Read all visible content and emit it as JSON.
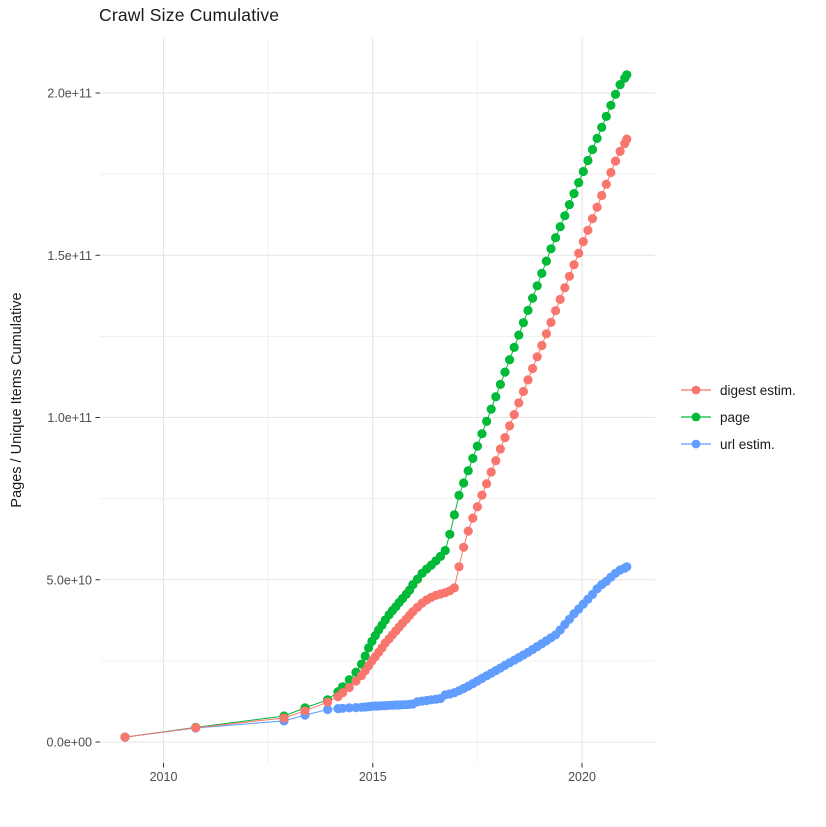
{
  "title": "Crawl Size Cumulative",
  "axes": {
    "y_label": "Pages / Unique Items Cumulative",
    "x_tick_labels": [
      "2010",
      "2015",
      "2020"
    ],
    "y_tick_labels": [
      "0.0e+00",
      "5.0e+10",
      "1.0e+11",
      "1.5e+11",
      "2.0e+11"
    ]
  },
  "legend": {
    "position": "right",
    "items": [
      {
        "label": "digest estim.",
        "color": "#F8766D"
      },
      {
        "label": "page",
        "color": "#00BA38"
      },
      {
        "label": "url estim.",
        "color": "#619CFF"
      }
    ]
  },
  "chart_data": {
    "type": "line",
    "title": "Crawl Size Cumulative",
    "xlabel": "",
    "ylabel": "Pages / Unique Items Cumulative",
    "xlim": [
      2008.5,
      2021.8
    ],
    "ylim": [
      0,
      210000000000.0
    ],
    "grid": true,
    "legend_position": "right",
    "point_shape": "circle",
    "x_major": [
      2010,
      2015,
      2020
    ],
    "x_minor": [
      2012.5,
      2017.5
    ],
    "y_major": [
      0,
      50000000000.0,
      100000000000.0,
      150000000000.0,
      200000000000.0
    ],
    "y_minor": [
      25000000000.0,
      75000000000.0,
      125000000000.0,
      175000000000.0
    ],
    "draw_order": [
      "page",
      "url estim.",
      "digest estim."
    ],
    "x": [
      2009.08,
      2010.77,
      2012.88,
      2013.38,
      2013.92,
      2014.17,
      2014.28,
      2014.44,
      2014.6,
      2014.73,
      2014.82,
      2014.9,
      2014.98,
      2015.06,
      2015.14,
      2015.22,
      2015.3,
      2015.39,
      2015.47,
      2015.55,
      2015.63,
      2015.71,
      2015.8,
      2015.88,
      2015.96,
      2016.07,
      2016.18,
      2016.29,
      2016.4,
      2016.51,
      2016.62,
      2016.73,
      2016.84,
      2016.95,
      2017.06,
      2017.17,
      2017.28,
      2017.39,
      2017.5,
      2017.61,
      2017.72,
      2017.83,
      2017.94,
      2018.05,
      2018.16,
      2018.27,
      2018.38,
      2018.49,
      2018.6,
      2018.71,
      2018.82,
      2018.93,
      2019.04,
      2019.15,
      2019.26,
      2019.37,
      2019.48,
      2019.59,
      2019.7,
      2019.81,
      2019.92,
      2020.03,
      2020.14,
      2020.25,
      2020.36,
      2020.47,
      2020.58,
      2020.69,
      2020.8,
      2020.91,
      2021.02,
      2021.07
    ],
    "series": [
      {
        "name": "digest estim.",
        "color": "#F8766D",
        "values": [
          1500000000.0,
          4400000000.0,
          7400000000.0,
          9600000000.0,
          12300000000.0,
          14000000000.0,
          15200000000.0,
          16800000000.0,
          18800000000.0,
          20500000000.0,
          22000000000.0,
          23500000000.0,
          25000000000.0,
          26300000000.0,
          27600000000.0,
          29000000000.0,
          30500000000.0,
          31800000000.0,
          33000000000.0,
          34200000000.0,
          35400000000.0,
          36600000000.0,
          37800000000.0,
          39000000000.0,
          40200000000.0,
          41500000000.0,
          42800000000.0,
          43800000000.0,
          44600000000.0,
          45200000000.0,
          45600000000.0,
          46000000000.0,
          46600000000.0,
          47500000000.0,
          54000000000.0,
          60000000000.0,
          65000000000.0,
          69000000000.0,
          72500000000.0,
          76100000000.0,
          79600000000.0,
          83200000000.0,
          86700000000.0,
          90300000000.0,
          93800000000.0,
          97400000000.0,
          100900000000.0,
          104500000000.0,
          108000000000.0,
          111600000000.0,
          115100000000.0,
          118700000000.0,
          122200000000.0,
          125800000000.0,
          129300000000.0,
          132900000000.0,
          136400000000.0,
          140000000000.0,
          143500000000.0,
          147100000000.0,
          150600000000.0,
          154200000000.0,
          157700000000.0,
          161300000000.0,
          164800000000.0,
          168400000000.0,
          171900000000.0,
          175500000000.0,
          179000000000.0,
          182000000000.0,
          184400000000.0,
          185800000000.0
        ]
      },
      {
        "name": "page",
        "color": "#00BA38",
        "values": [
          1500000000.0,
          4500000000.0,
          8000000000.0,
          10500000000.0,
          13000000000.0,
          15500000000.0,
          17000000000.0,
          19200000000.0,
          21500000000.0,
          24000000000.0,
          26500000000.0,
          29000000000.0,
          31000000000.0,
          32800000000.0,
          34500000000.0,
          36000000000.0,
          37600000000.0,
          39200000000.0,
          40500000000.0,
          41700000000.0,
          43000000000.0,
          44200000000.0,
          45500000000.0,
          46800000000.0,
          48500000000.0,
          50200000000.0,
          52000000000.0,
          53300000000.0,
          54500000000.0,
          55800000000.0,
          57200000000.0,
          59000000000.0,
          64000000000.0,
          70000000000.0,
          76000000000.0,
          79800000000.0,
          83600000000.0,
          87400000000.0,
          91200000000.0,
          95000000000.0,
          98800000000.0,
          102600000000.0,
          106400000000.0,
          110200000000.0,
          114000000000.0,
          117800000000.0,
          121600000000.0,
          125400000000.0,
          129200000000.0,
          133000000000.0,
          136800000000.0,
          140600000000.0,
          144400000000.0,
          148200000000.0,
          152000000000.0,
          155400000000.0,
          158800000000.0,
          162200000000.0,
          165600000000.0,
          169000000000.0,
          172400000000.0,
          175800000000.0,
          179200000000.0,
          182600000000.0,
          186000000000.0,
          189400000000.0,
          192800000000.0,
          196200000000.0,
          199600000000.0,
          202600000000.0,
          204600000000.0,
          205600000000.0
        ]
      },
      {
        "name": "url estim.",
        "color": "#619CFF",
        "values": [
          1500000000.0,
          4300000000.0,
          6500000000.0,
          8300000000.0,
          10000000000.0,
          10300000000.0,
          10400000000.0,
          10500000000.0,
          10600000000.0,
          10700000000.0,
          10800000000.0,
          10900000000.0,
          11000000000.0,
          11100000000.0,
          11100000000.0,
          11200000000.0,
          11200000000.0,
          11300000000.0,
          11300000000.0,
          11400000000.0,
          11400000000.0,
          11500000000.0,
          11500000000.0,
          11600000000.0,
          11700000000.0,
          12400000000.0,
          12600000000.0,
          12800000000.0,
          13000000000.0,
          13200000000.0,
          13400000000.0,
          14500000000.0,
          14800000000.0,
          15200000000.0,
          15800000000.0,
          16500000000.0,
          17200000000.0,
          18000000000.0,
          18800000000.0,
          19600000000.0,
          20400000000.0,
          21200000000.0,
          22000000000.0,
          22800000000.0,
          23600000000.0,
          24400000000.0,
          25200000000.0,
          26000000000.0,
          26800000000.0,
          27600000000.0,
          28500000000.0,
          29400000000.0,
          30300000000.0,
          31200000000.0,
          32100000000.0,
          33000000000.0,
          34500000000.0,
          36200000000.0,
          37800000000.0,
          39500000000.0,
          41000000000.0,
          42500000000.0,
          44000000000.0,
          45500000000.0,
          47200000000.0,
          48500000000.0,
          49500000000.0,
          50800000000.0,
          52000000000.0,
          53000000000.0,
          53600000000.0,
          54000000000.0
        ]
      }
    ]
  }
}
